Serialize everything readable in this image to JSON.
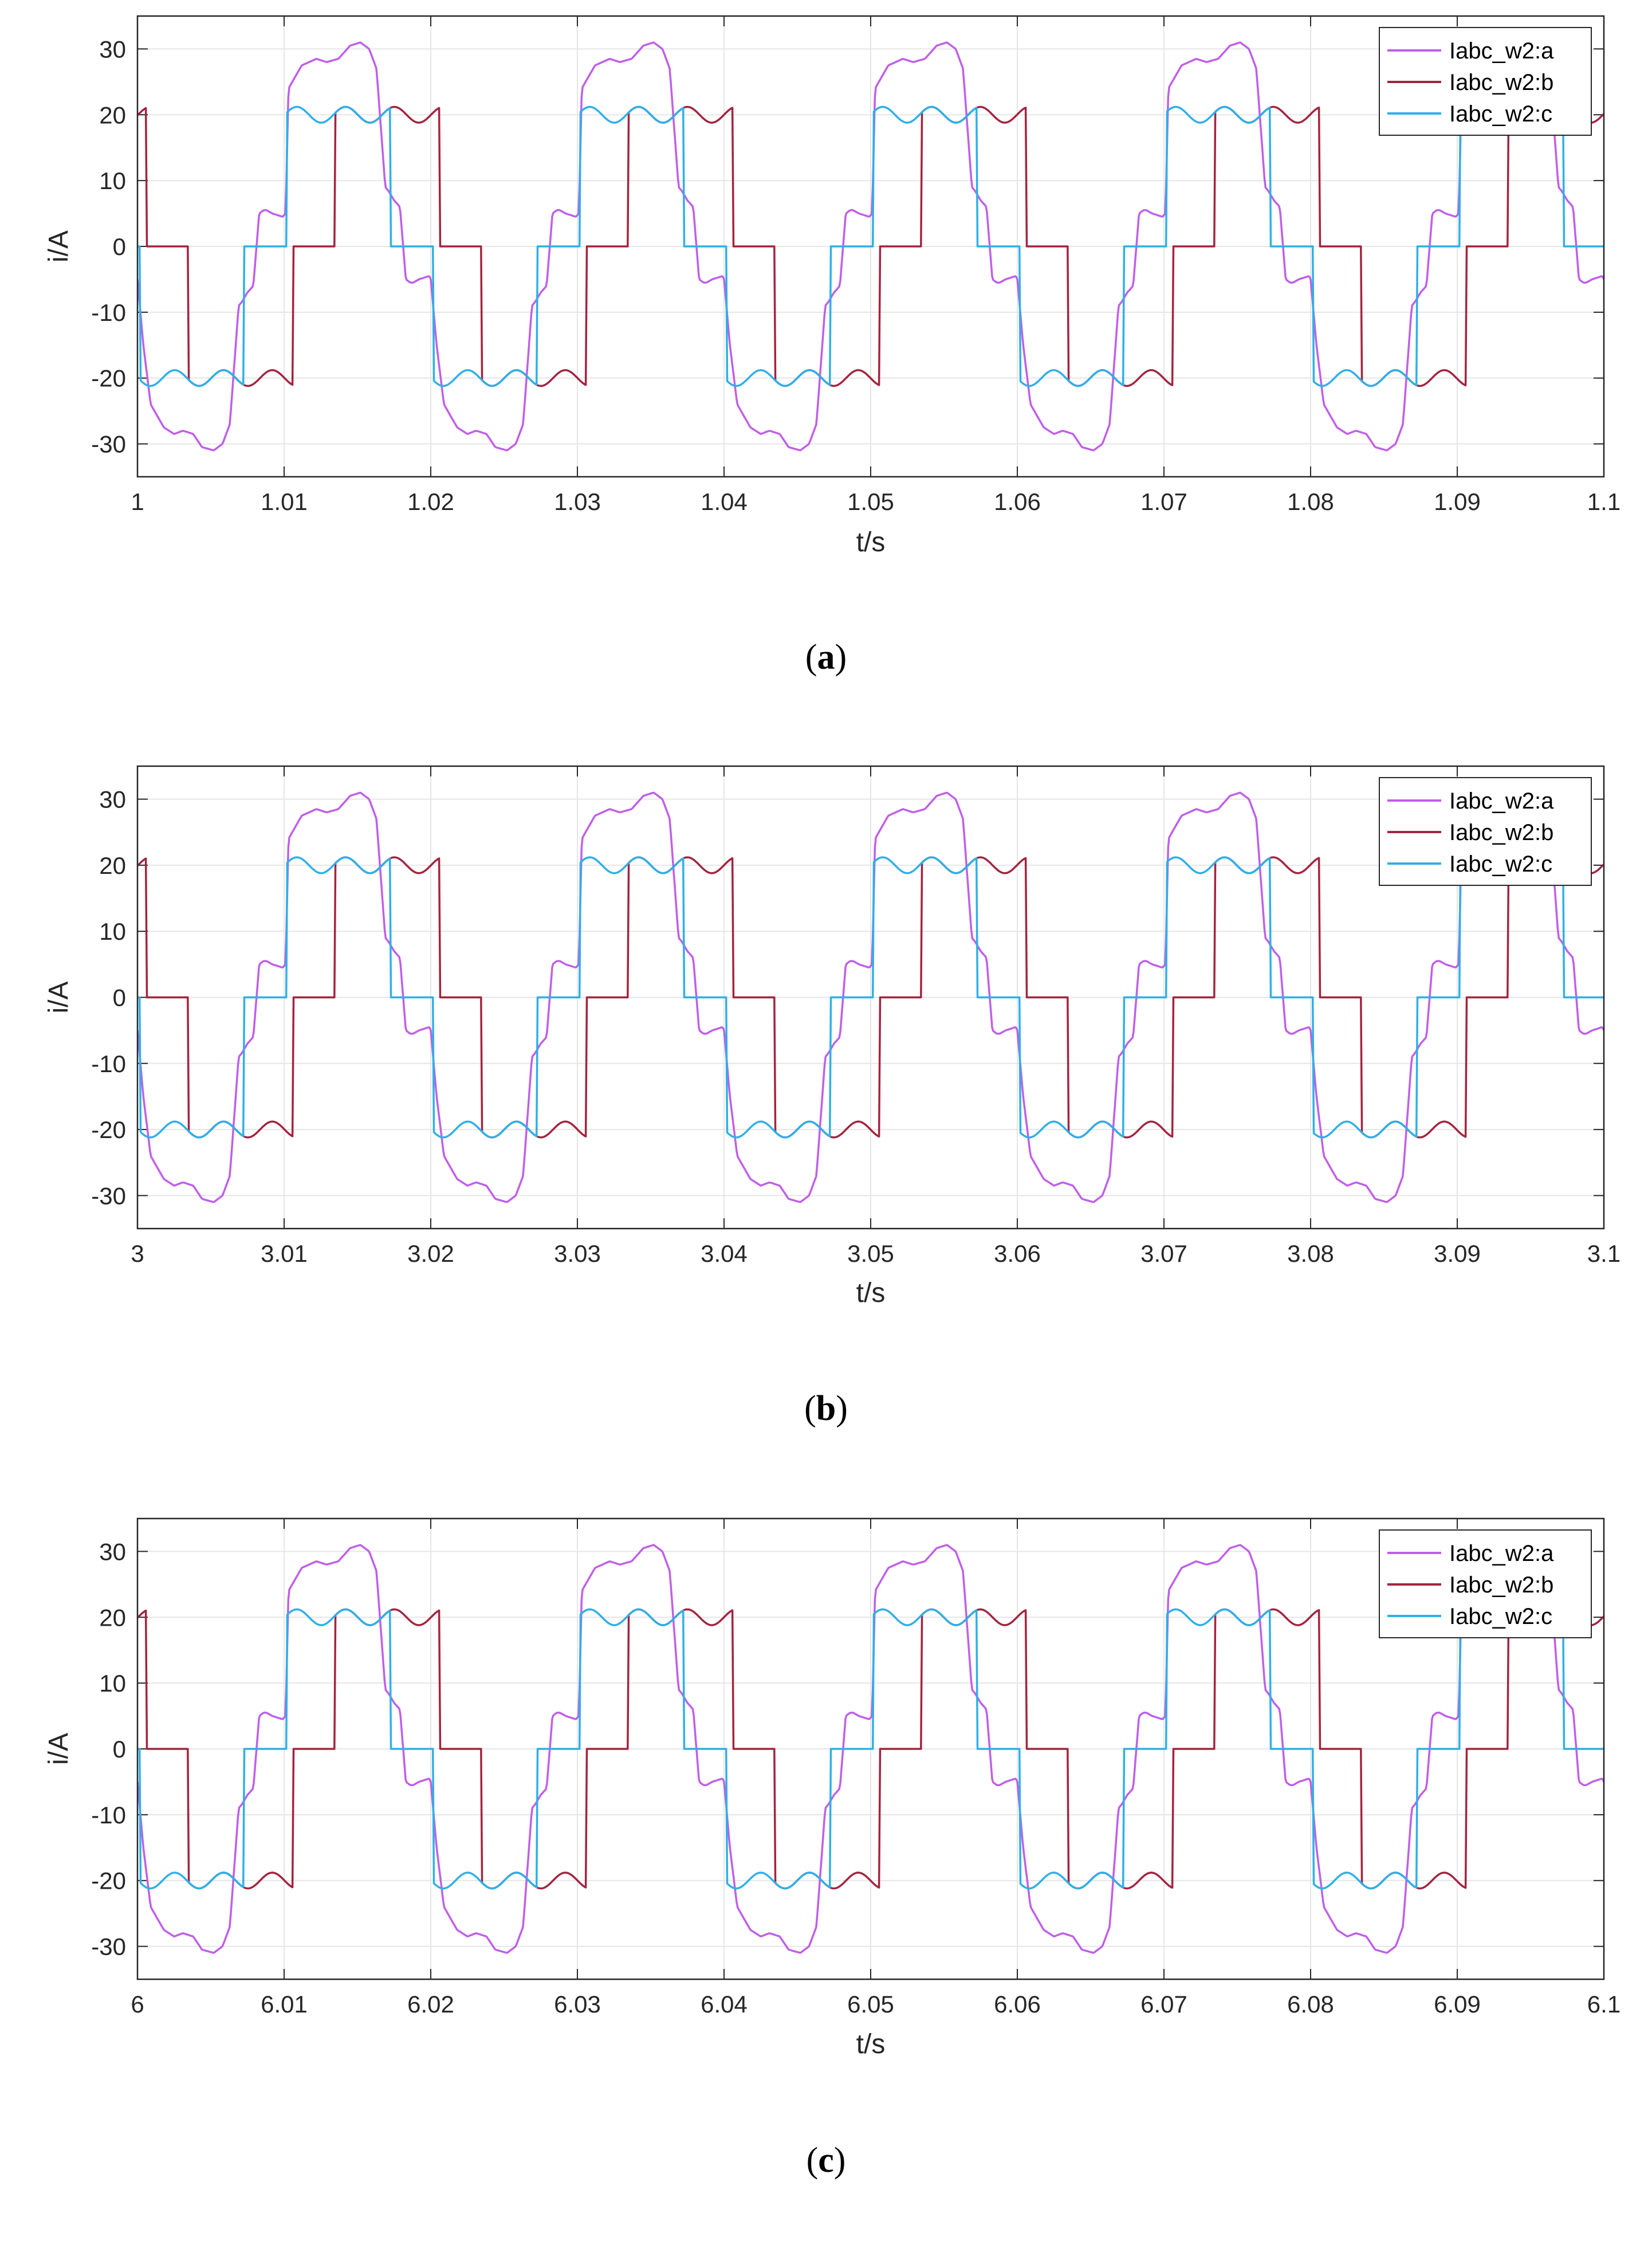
{
  "figure": {
    "panel_count": 3
  },
  "chart_data": [
    {
      "type": "line",
      "caption_letter": "a",
      "xlabel": "t/s",
      "ylabel": "i/A",
      "xlim": [
        1,
        1.1
      ],
      "ylim": [
        -35,
        35
      ],
      "x_ticks": [
        "1",
        "1.01",
        "1.02",
        "1.03",
        "1.04",
        "1.05",
        "1.06",
        "1.07",
        "1.08",
        "1.09",
        "1.1"
      ],
      "y_ticks": [
        "30",
        "20",
        "10",
        "0",
        "-10",
        "-20",
        "-30"
      ],
      "grid": true,
      "legend": "top-right",
      "series": [
        {
          "name": "Iabc_w2:a",
          "color": "#c05fe8",
          "phase_shift": 0
        },
        {
          "name": "Iabc_w2:b",
          "color": "#a3243f",
          "phase_shift": 0.0066667
        },
        {
          "name": "Iabc_w2:c",
          "color": "#2eb0e8",
          "phase_shift": 0.0133333
        }
      ],
      "waveform": {
        "period": 0.02,
        "t": [
          0,
          0.0004,
          0.0009,
          0.0018,
          0.0025,
          0.0031,
          0.0038,
          0.0044,
          0.0052,
          0.0058,
          0.0063,
          0.0067,
          0.0069,
          0.0071,
          0.0075,
          0.0079,
          0.0083,
          0.0086,
          0.0088,
          0.0092,
          0.0099,
          0.0101,
          0.0103,
          0.0112,
          0.0122,
          0.0129,
          0.0137,
          0.0145,
          0.0152,
          0.0158,
          0.0163,
          0.0167,
          0.0169,
          0.0171,
          0.0175,
          0.0179,
          0.0183,
          0.0186,
          0.0188,
          0.0192,
          0.0199,
          0.02
        ],
        "v": [
          -5,
          -15,
          -24,
          -27.5,
          -28.5,
          -28,
          -28.5,
          -30.5,
          -31,
          -30,
          -27,
          -15,
          -9,
          -8.5,
          -7,
          -6,
          5,
          5.5,
          5.5,
          5,
          4.5,
          5,
          24,
          27.5,
          28.5,
          28,
          28.5,
          30.5,
          31,
          30,
          27,
          15,
          9,
          8.5,
          7,
          6,
          -5,
          -5.5,
          -5.5,
          -5,
          -4.5,
          -5
        ]
      }
    },
    {
      "type": "line",
      "caption_letter": "b",
      "xlabel": "t/s",
      "ylabel": "i/A",
      "xlim": [
        3,
        3.1
      ],
      "ylim": [
        -35,
        35
      ],
      "x_ticks": [
        "3",
        "3.01",
        "3.02",
        "3.03",
        "3.04",
        "3.05",
        "3.06",
        "3.07",
        "3.08",
        "3.09",
        "3.1"
      ],
      "y_ticks": [
        "30",
        "20",
        "10",
        "0",
        "-10",
        "-20",
        "-30"
      ],
      "grid": true,
      "legend": "top-right",
      "series": [
        {
          "name": "Iabc_w2:a",
          "color": "#c05fe8",
          "phase_shift": 0
        },
        {
          "name": "Iabc_w2:b",
          "color": "#a3243f",
          "phase_shift": 0.0066667
        },
        {
          "name": "Iabc_w2:c",
          "color": "#2eb0e8",
          "phase_shift": 0.0133333
        }
      ],
      "waveform": {
        "period": 0.02,
        "t": [
          0,
          0.0004,
          0.0009,
          0.0018,
          0.0025,
          0.0031,
          0.0038,
          0.0044,
          0.0052,
          0.0058,
          0.0063,
          0.0067,
          0.0069,
          0.0071,
          0.0075,
          0.0079,
          0.0083,
          0.0086,
          0.0088,
          0.0092,
          0.0099,
          0.0101,
          0.0103,
          0.0112,
          0.0122,
          0.0129,
          0.0137,
          0.0145,
          0.0152,
          0.0158,
          0.0163,
          0.0167,
          0.0169,
          0.0171,
          0.0175,
          0.0179,
          0.0183,
          0.0186,
          0.0188,
          0.0192,
          0.0199,
          0.02
        ],
        "v": [
          -5,
          -15,
          -24,
          -27.5,
          -28.5,
          -28,
          -28.5,
          -30.5,
          -31,
          -30,
          -27,
          -15,
          -9,
          -8.5,
          -7,
          -6,
          5,
          5.5,
          5.5,
          5,
          4.5,
          5,
          24,
          27.5,
          28.5,
          28,
          28.5,
          30.5,
          31,
          30,
          27,
          15,
          9,
          8.5,
          7,
          6,
          -5,
          -5.5,
          -5.5,
          -5,
          -4.5,
          -5
        ]
      }
    },
    {
      "type": "line",
      "caption_letter": "c",
      "xlabel": "t/s",
      "ylabel": "i/A",
      "xlim": [
        6,
        6.1
      ],
      "ylim": [
        -35,
        35
      ],
      "x_ticks": [
        "6",
        "6.01",
        "6.02",
        "6.03",
        "6.04",
        "6.05",
        "6.06",
        "6.07",
        "6.08",
        "6.09",
        "6.1"
      ],
      "y_ticks": [
        "30",
        "20",
        "10",
        "0",
        "-10",
        "-20",
        "-30"
      ],
      "grid": true,
      "legend": "top-right",
      "series": [
        {
          "name": "Iabc_w2:a",
          "color": "#c05fe8",
          "phase_shift": 0
        },
        {
          "name": "Iabc_w2:b",
          "color": "#a3243f",
          "phase_shift": 0.0066667
        },
        {
          "name": "Iabc_w2:c",
          "color": "#2eb0e8",
          "phase_shift": 0.0133333
        }
      ],
      "waveform": {
        "period": 0.02,
        "t": [
          0,
          0.0004,
          0.0009,
          0.0018,
          0.0025,
          0.0031,
          0.0038,
          0.0044,
          0.0052,
          0.0058,
          0.0063,
          0.0067,
          0.0069,
          0.0071,
          0.0075,
          0.0079,
          0.0083,
          0.0086,
          0.0088,
          0.0092,
          0.0099,
          0.0101,
          0.0103,
          0.0112,
          0.0122,
          0.0129,
          0.0137,
          0.0145,
          0.0152,
          0.0158,
          0.0163,
          0.0167,
          0.0169,
          0.0171,
          0.0175,
          0.0179,
          0.0183,
          0.0186,
          0.0188,
          0.0192,
          0.0199,
          0.02
        ],
        "v": [
          -5,
          -15,
          -24,
          -27.5,
          -28.5,
          -28,
          -28.5,
          -30.5,
          -31,
          -30,
          -27,
          -15,
          -9,
          -8.5,
          -7,
          -6,
          5,
          5.5,
          5.5,
          5,
          4.5,
          5,
          24,
          27.5,
          28.5,
          28,
          28.5,
          30.5,
          31,
          30,
          27,
          15,
          9,
          8.5,
          7,
          6,
          -5,
          -5.5,
          -5.5,
          -5,
          -4.5,
          -5
        ]
      }
    }
  ]
}
